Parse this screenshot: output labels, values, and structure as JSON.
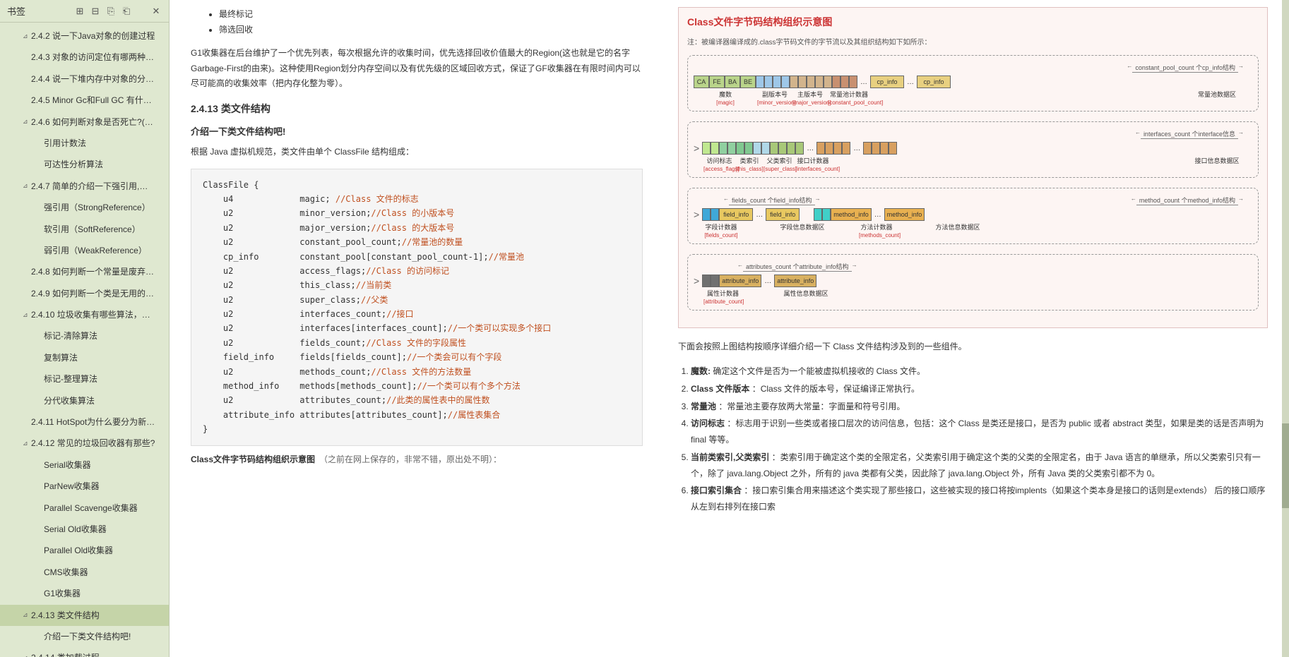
{
  "sidebar": {
    "title": "书签",
    "icons": [
      "expand-all-icon",
      "collapse-all-icon",
      "add-icon",
      "delete-icon",
      "close-icon"
    ],
    "items": [
      {
        "l": "2.4.2 说一下Java对象的创建过程",
        "i": 1,
        "c": true
      },
      {
        "l": "2.4.3 对象的访问定位有哪两种…",
        "i": 1,
        "c": false
      },
      {
        "l": "2.4.4 说一下堆内存中对象的分…",
        "i": 1,
        "c": false
      },
      {
        "l": "2.4.5 Minor Gc和Full GC 有什…",
        "i": 1,
        "c": false
      },
      {
        "l": "2.4.6 如何判断对象是否死亡?(…",
        "i": 1,
        "c": true
      },
      {
        "l": "引用计数法",
        "i": 2,
        "c": false
      },
      {
        "l": "可达性分析算法",
        "i": 2,
        "c": false
      },
      {
        "l": "2.4.7 简单的介绍一下强引用,…",
        "i": 1,
        "c": true
      },
      {
        "l": "强引用（StrongReference）",
        "i": 2,
        "c": false
      },
      {
        "l": "软引用（SoftReference）",
        "i": 2,
        "c": false
      },
      {
        "l": "弱引用（WeakReference）",
        "i": 2,
        "c": false
      },
      {
        "l": "2.4.8 如何判断一个常量是废弃…",
        "i": 1,
        "c": false
      },
      {
        "l": "2.4.9 如何判断一个类是无用的…",
        "i": 1,
        "c": false
      },
      {
        "l": "2.4.10 垃圾收集有哪些算法，…",
        "i": 1,
        "c": true
      },
      {
        "l": "标记-清除算法",
        "i": 2,
        "c": false
      },
      {
        "l": "复制算法",
        "i": 2,
        "c": false
      },
      {
        "l": "标记-整理算法",
        "i": 2,
        "c": false
      },
      {
        "l": "分代收集算法",
        "i": 2,
        "c": false
      },
      {
        "l": "2.4.11 HotSpot为什么要分为新…",
        "i": 1,
        "c": false
      },
      {
        "l": "2.4.12 常见的垃圾回收器有那些?",
        "i": 1,
        "c": true
      },
      {
        "l": "Serial收集器",
        "i": 2,
        "c": false
      },
      {
        "l": "ParNew收集器",
        "i": 2,
        "c": false
      },
      {
        "l": "Parallel Scavenge收集器",
        "i": 2,
        "c": false
      },
      {
        "l": "Serial Old收集器",
        "i": 2,
        "c": false
      },
      {
        "l": "Parallel Old收集器",
        "i": 2,
        "c": false
      },
      {
        "l": "CMS收集器",
        "i": 2,
        "c": false
      },
      {
        "l": "G1收集器",
        "i": 2,
        "c": false
      },
      {
        "l": "2.4.13 类文件结构",
        "i": 1,
        "c": true,
        "sel": true
      },
      {
        "l": "介绍一下类文件结构吧!",
        "i": 2,
        "c": false
      },
      {
        "l": "2.4.14 类加载过程",
        "i": 1,
        "c": true
      }
    ]
  },
  "content": {
    "bullets": [
      "最终标记",
      "筛选回收"
    ],
    "para1": "G1收集器在后台维护了一个优先列表，每次根据允许的收集时间，优先选择回收价值最大的Region(这也就是它的名字Garbage-First的由来)。这种使用Region划分内存空间以及有优先级的区域回收方式，保证了GF收集器在有限时间内可以尽可能高的收集效率（把内存化整为零）。",
    "h3": "2.4.13 类文件结构",
    "h4": "介绍一下类文件结构吧!",
    "para2": "根据 Java 虚拟机规范，类文件由单个 ClassFile 结构组成：",
    "code_lines": [
      {
        "t": "ClassFile {",
        "c": ""
      },
      {
        "t": "    u4             magic; ",
        "c": "//Class 文件的标志"
      },
      {
        "t": "    u2             minor_version;",
        "c": "//Class 的小版本号"
      },
      {
        "t": "    u2             major_version;",
        "c": "//Class 的大版本号"
      },
      {
        "t": "    u2             constant_pool_count;",
        "c": "//常量池的数量"
      },
      {
        "t": "    cp_info        constant_pool[constant_pool_count-1];",
        "c": "//常量池"
      },
      {
        "t": "    u2             access_flags;",
        "c": "//Class 的访问标记"
      },
      {
        "t": "    u2             this_class;",
        "c": "//当前类"
      },
      {
        "t": "    u2             super_class;",
        "c": "//父类"
      },
      {
        "t": "    u2             interfaces_count;",
        "c": "//接口"
      },
      {
        "t": "    u2             interfaces[interfaces_count];",
        "c": "//一个类可以实现多个接口"
      },
      {
        "t": "    u2             fields_count;",
        "c": "//Class 文件的字段属性"
      },
      {
        "t": "    field_info     fields[fields_count];",
        "c": "//一个类会可以有个字段"
      },
      {
        "t": "    u2             methods_count;",
        "c": "//Class 文件的方法数量"
      },
      {
        "t": "    method_info    methods[methods_count];",
        "c": "//一个类可以有个多个方法"
      },
      {
        "t": "    u2             attributes_count;",
        "c": "//此类的属性表中的属性数"
      },
      {
        "t": "    attribute_info attributes[attributes_count];",
        "c": "//属性表集合"
      },
      {
        "t": "}",
        "c": ""
      }
    ],
    "caption": "Class文件字节码结构组织示意图",
    "caption_note": "（之前在网上保存的，非常不错，原出处不明）："
  },
  "diagram": {
    "title": "Class文件字节码结构组织示意图",
    "note": "注：被编译器编译成的.class字节码文件的字节流以及其组织结构如下如所示：",
    "row1": {
      "header_arrow": "constant_pool_count 个cp_info结构",
      "magic_cells": [
        "CA",
        "FE",
        "BA",
        "BE"
      ],
      "labels": [
        {
          "t": "魔数",
          "r": "[magic]"
        },
        {
          "t": "副版本号",
          "r": "[minor_version]"
        },
        {
          "t": "主版本号",
          "r": "[major_version]"
        },
        {
          "t": "常量池计数器",
          "r": "[constant_pool_count]"
        },
        {
          "t": "常量池数据区",
          "r": ""
        }
      ],
      "cp_label": "cp_info",
      "colors": {
        "magic": "#b9d48a",
        "minor": "#9ec7e8",
        "major": "#9ec7e8",
        "count": "#d2b48c",
        "cp1": "#e8d080",
        "cp2": "#e8d080"
      }
    },
    "row2": {
      "header_arrow": "interfaces_count 个interface信息",
      "labels": [
        {
          "t": "访问标志",
          "r": "[access_flags]"
        },
        {
          "t": "类索引",
          "r": "[this_class]"
        },
        {
          "t": "父类索引",
          "r": "[super_class]"
        },
        {
          "t": "接口计数器",
          "r": "[interfaces_count]"
        },
        {
          "t": "接口信息数据区",
          "r": ""
        }
      ],
      "colors": {
        "acc": "#c0e890",
        "thc": "#90d0a0",
        "spc": "#80c890",
        "ifc": "#b0d8e8",
        "if": "#d8a060"
      }
    },
    "row3": {
      "arrow_left": "fields_count 个field_info结构",
      "arrow_right": "method_count 个method_info结构",
      "field_label": "field_info",
      "method_label": "method_info",
      "labels": [
        {
          "t": "字段计数器",
          "r": "[fields_count]"
        },
        {
          "t": "字段信息数据区",
          "r": ""
        },
        {
          "t": "方法计数器",
          "r": "[methods_count]"
        },
        {
          "t": "方法信息数据区",
          "r": ""
        }
      ],
      "colors": {
        "fc": "#40a8d8",
        "fi": "#e8c860",
        "mc": "#40d0c8",
        "mi": "#e8b050"
      }
    },
    "row4": {
      "arrow": "attributes_count 个attribute_info结构",
      "attr_label": "attribute_info",
      "labels": [
        {
          "t": "属性计数器",
          "r": "[attribute_count]"
        },
        {
          "t": "属性信息数据区",
          "r": ""
        }
      ],
      "colors": {
        "ac": "#707070",
        "ai": "#d8b060"
      }
    }
  },
  "right_text": {
    "intro": "下面会按照上图结构按顺序详细介绍一下 Class 文件结构涉及到的一些组件。",
    "items": [
      {
        "b": "魔数:",
        "t": " 确定这个文件是否为一个能被虚拟机接收的 Class 文件。"
      },
      {
        "b": "Class 文件版本",
        "t": " ：Class 文件的版本号，保证编译正常执行。"
      },
      {
        "b": "常量池",
        "t": " ：常量池主要存放两大常量：字面量和符号引用。"
      },
      {
        "b": "访问标志",
        "t": " ：标志用于识别一些类或者接口层次的访问信息，包括：这个 Class 是类还是接口，是否为 public 或者 abstract 类型，如果是类的话是否声明为 final 等等。"
      },
      {
        "b": "当前类索引,父类索引",
        "t": " ：类索引用于确定这个类的全限定名，父类索引用于确定这个类的父类的全限定名，由于 Java 语言的单继承，所以父类索引只有一个，除了 java.lang.Object 之外，所有的 java 类都有父类，因此除了 java.lang.Object 外，所有 Java 类的父类索引都不为 0。"
      },
      {
        "b": "接口索引集合",
        "t": " ：接口索引集合用来描述这个类实现了那些接口，这些被实现的接口将按implents（如果这个类本身是接口的话则是extends） 后的接口顺序从左到右排列在接口索"
      }
    ]
  }
}
